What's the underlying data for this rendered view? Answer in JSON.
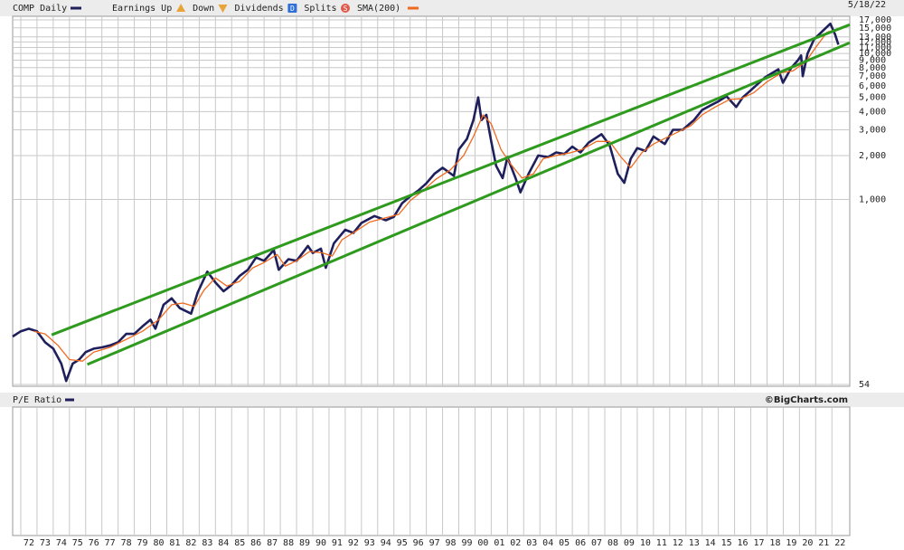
{
  "chart_data": {
    "type": "line",
    "date": "5/18/22",
    "log_scale": true,
    "grid": true,
    "legend_items": [
      {
        "label": "Earnings Up",
        "color": "#e8a33a"
      },
      {
        "label": "Down",
        "color": "#e8a33a"
      },
      {
        "label": "Dividends",
        "icon": "D",
        "color": "#2f6fd6"
      },
      {
        "label": "Splits",
        "icon": "S",
        "color": "#e05a4a"
      }
    ],
    "series": [
      {
        "name": "COMP Daily",
        "color": "#1f1f5c",
        "x": [
          1971.5,
          1972.0,
          1972.5,
          1973.0,
          1973.5,
          1974.0,
          1974.5,
          1974.8,
          1975.2,
          1975.6,
          1976.0,
          1976.5,
          1977.0,
          1977.5,
          1978.0,
          1978.5,
          1979.0,
          1979.5,
          1980.0,
          1980.3,
          1980.8,
          1981.3,
          1981.8,
          1982.5,
          1982.9,
          1983.5,
          1984.0,
          1984.5,
          1985.0,
          1985.5,
          1986.0,
          1986.5,
          1987.0,
          1987.6,
          1987.9,
          1988.5,
          1989.0,
          1989.7,
          1990.0,
          1990.5,
          1990.8,
          1991.3,
          1992.0,
          1992.5,
          1993.0,
          1993.8,
          1994.5,
          1995.0,
          1995.5,
          1996.0,
          1996.5,
          1997.0,
          1997.5,
          1998.0,
          1998.7,
          1999.0,
          1999.5,
          1999.9,
          2000.2,
          2000.4,
          2000.7,
          2001.0,
          2001.3,
          2001.7,
          2002.0,
          2002.5,
          2002.8,
          2003.3,
          2003.9,
          2004.5,
          2005.0,
          2005.5,
          2006.0,
          2006.5,
          2007.0,
          2007.8,
          2008.3,
          2008.8,
          2009.2,
          2009.6,
          2010.0,
          2010.5,
          2011.0,
          2011.7,
          2012.2,
          2012.8,
          2013.5,
          2014.0,
          2014.5,
          2015.0,
          2015.5,
          2016.1,
          2016.5,
          2017.0,
          2017.9,
          2018.7,
          2018.98,
          2019.5,
          2019.9,
          2020.1,
          2020.2,
          2020.5,
          2020.9,
          2021.2,
          2021.9,
          2022.2,
          2022.4
        ],
        "values": [
          115,
          125,
          130,
          125,
          105,
          95,
          75,
          57,
          75,
          80,
          90,
          95,
          97,
          100,
          105,
          120,
          120,
          135,
          150,
          130,
          190,
          210,
          180,
          165,
          230,
          320,
          270,
          235,
          260,
          300,
          330,
          400,
          380,
          450,
          330,
          390,
          380,
          480,
          430,
          460,
          340,
          500,
          620,
          590,
          690,
          770,
          720,
          760,
          940,
          1050,
          1150,
          1290,
          1500,
          1650,
          1450,
          2200,
          2600,
          3500,
          5000,
          3500,
          3800,
          2500,
          1700,
          1400,
          1950,
          1400,
          1120,
          1500,
          2000,
          1950,
          2100,
          2050,
          2300,
          2100,
          2450,
          2800,
          2350,
          1500,
          1300,
          1900,
          2250,
          2150,
          2700,
          2400,
          3000,
          3000,
          3500,
          4100,
          4400,
          4700,
          5100,
          4300,
          5000,
          5600,
          6900,
          7800,
          6300,
          8000,
          9000,
          9700,
          7000,
          10000,
          12500,
          13500,
          16000,
          13500,
          11500
        ]
      },
      {
        "name": "SMA(200)",
        "color": "#f06a1e",
        "x": [
          1972.8,
          1973.5,
          1974.3,
          1975.0,
          1975.8,
          1976.5,
          1977.5,
          1978.5,
          1979.5,
          1980.5,
          1981.3,
          1982.0,
          1982.7,
          1983.3,
          1984.0,
          1984.7,
          1985.5,
          1986.3,
          1987.0,
          1987.8,
          1988.3,
          1989.0,
          1989.8,
          1990.6,
          1991.2,
          1991.8,
          1992.7,
          1993.5,
          1994.5,
          1995.3,
          1996.0,
          1996.8,
          1997.6,
          1998.5,
          1999.3,
          1999.9,
          2000.5,
          2001.0,
          2001.6,
          2002.2,
          2002.9,
          2003.6,
          2004.2,
          2005.0,
          2005.8,
          2006.6,
          2007.5,
          2008.3,
          2009.0,
          2009.6,
          2010.3,
          2011.0,
          2011.8,
          2012.5,
          2013.3,
          2014.0,
          2014.8,
          2015.7,
          2016.4,
          2017.2,
          2018.0,
          2018.9,
          2019.6,
          2020.4,
          2021.0,
          2021.7,
          2022.4
        ],
        "values": [
          125,
          120,
          100,
          80,
          78,
          90,
          97,
          110,
          125,
          150,
          190,
          195,
          185,
          240,
          290,
          255,
          275,
          340,
          370,
          420,
          350,
          380,
          440,
          430,
          410,
          530,
          610,
          700,
          750,
          790,
          980,
          1150,
          1380,
          1600,
          2000,
          2700,
          3800,
          3300,
          2200,
          1750,
          1400,
          1500,
          1900,
          2000,
          2080,
          2200,
          2500,
          2500,
          1950,
          1650,
          2100,
          2400,
          2650,
          2900,
          3200,
          3800,
          4300,
          4850,
          4900,
          5400,
          6400,
          7400,
          7600,
          8800,
          11000,
          14000,
          14800
        ]
      }
    ],
    "trendlines": [
      {
        "color": "#2e9a1e",
        "x": [
          1973.9,
          2023.1
        ],
        "values": [
          118,
          15760
        ]
      },
      {
        "color": "#2e9a1e",
        "x": [
          1976.1,
          2023.1
        ],
        "values": [
          74,
          11850
        ]
      }
    ],
    "xlim": [
      1971.5,
      2023.1
    ],
    "ylim": [
      54,
      17000
    ],
    "yticks": [
      54,
      {
        "value": 1000,
        "label": "1,000"
      },
      {
        "value": 2000,
        "label": "2,000"
      },
      {
        "value": 3000,
        "label": "3,000"
      },
      {
        "value": 4000,
        "label": "4,000"
      },
      {
        "value": 5000,
        "label": "5,000"
      },
      {
        "value": 6000,
        "label": "6,000"
      },
      {
        "value": 7000,
        "label": "7,000"
      },
      {
        "value": 8000,
        "label": "8,000"
      },
      {
        "value": 9000,
        "label": "9,000"
      },
      {
        "value": 10000,
        "label": "10,000"
      },
      {
        "value": 11000,
        "label": "11,000"
      },
      {
        "value": 12000,
        "label": "12,000"
      },
      {
        "value": 13000,
        "label": "13,000"
      },
      {
        "value": 15000,
        "label": "15,000"
      },
      {
        "value": 17000,
        "label": "17,000"
      }
    ],
    "xticks": [
      {
        "value": 1972,
        "label": "72"
      },
      {
        "value": 1973,
        "label": "73"
      },
      {
        "value": 1974,
        "label": "74"
      },
      {
        "value": 1975,
        "label": "75"
      },
      {
        "value": 1976,
        "label": "76"
      },
      {
        "value": 1977,
        "label": "77"
      },
      {
        "value": 1978,
        "label": "78"
      },
      {
        "value": 1979,
        "label": "79"
      },
      {
        "value": 1980,
        "label": "80"
      },
      {
        "value": 1981,
        "label": "81"
      },
      {
        "value": 1982,
        "label": "82"
      },
      {
        "value": 1983,
        "label": "83"
      },
      {
        "value": 1984,
        "label": "84"
      },
      {
        "value": 1985,
        "label": "85"
      },
      {
        "value": 1986,
        "label": "86"
      },
      {
        "value": 1987,
        "label": "87"
      },
      {
        "value": 1988,
        "label": "88"
      },
      {
        "value": 1989,
        "label": "89"
      },
      {
        "value": 1990,
        "label": "90"
      },
      {
        "value": 1991,
        "label": "91"
      },
      {
        "value": 1992,
        "label": "92"
      },
      {
        "value": 1993,
        "label": "93"
      },
      {
        "value": 1994,
        "label": "94"
      },
      {
        "value": 1995,
        "label": "95"
      },
      {
        "value": 1996,
        "label": "96"
      },
      {
        "value": 1997,
        "label": "97"
      },
      {
        "value": 1998,
        "label": "98"
      },
      {
        "value": 1999,
        "label": "99"
      },
      {
        "value": 2000,
        "label": "00"
      },
      {
        "value": 2001,
        "label": "01"
      },
      {
        "value": 2002,
        "label": "02"
      },
      {
        "value": 2003,
        "label": "03"
      },
      {
        "value": 2004,
        "label": "04"
      },
      {
        "value": 2005,
        "label": "05"
      },
      {
        "value": 2006,
        "label": "06"
      },
      {
        "value": 2007,
        "label": "07"
      },
      {
        "value": 2008,
        "label": "08"
      },
      {
        "value": 2009,
        "label": "09"
      },
      {
        "value": 2010,
        "label": "10"
      },
      {
        "value": 2011,
        "label": "11"
      },
      {
        "value": 2012,
        "label": "12"
      },
      {
        "value": 2013,
        "label": "13"
      },
      {
        "value": 2014,
        "label": "14"
      },
      {
        "value": 2015,
        "label": "15"
      },
      {
        "value": 2016,
        "label": "16"
      },
      {
        "value": 2017,
        "label": "17"
      },
      {
        "value": 2018,
        "label": "18"
      },
      {
        "value": 2019,
        "label": "19"
      },
      {
        "value": 2020,
        "label": "20"
      },
      {
        "value": 2021,
        "label": "21"
      },
      {
        "value": 2022,
        "label": "22"
      }
    ],
    "pe_panel": {
      "label": "P/E Ratio",
      "credit": "©BigCharts.com"
    }
  }
}
